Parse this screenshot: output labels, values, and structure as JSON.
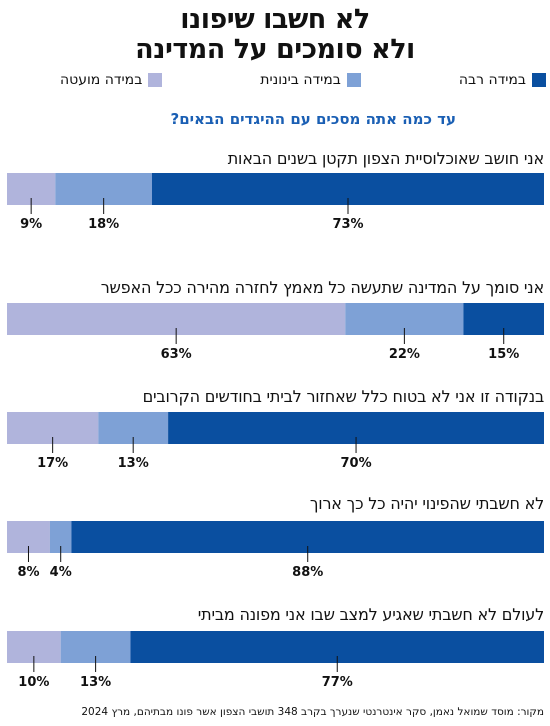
{
  "title": {
    "line1": "לא חשבו שיפונו",
    "line2": "ולא סומכים על המדינה"
  },
  "legend": [
    {
      "label": "במידה רבה",
      "color": "#0a4fa0"
    },
    {
      "label": "במידה בינונית",
      "color": "#7ea1d6"
    },
    {
      "label": "במידה מועטה",
      "color": "#b0b4dc"
    }
  ],
  "question": "עד כמה אתה מסכים עם ההיגדים הבאים?",
  "chart_data": {
    "type": "bar",
    "orientation": "horizontal-stacked",
    "stack_order_left_to_right": [
      "במידה מועטה",
      "במידה בינונית",
      "במידה רבה"
    ],
    "categories": [
      "אני חושב שאוכלוסיית הצפון תקטן בשנים הבאות",
      "אני סומך על המדינה שתעשה כל מאמץ לחזרה מהירה ככל האפשר",
      "בנקודה זו אני לא בטוח כלל שאחזור לביתי בחודשים הקרובים",
      "לא חשבתי שהפינוי יהיה כל כך ארוך",
      "לעולם לא חשבתי שאגיע למצב שבו אני מפונה מביתי"
    ],
    "series": [
      {
        "name": "במידה מועטה",
        "color": "#b0b4dc",
        "values": [
          9,
          63,
          17,
          8,
          10
        ]
      },
      {
        "name": "במידה בינונית",
        "color": "#7ea1d6",
        "values": [
          18,
          22,
          13,
          4,
          13
        ]
      },
      {
        "name": "במידה רבה",
        "color": "#0a4fa0",
        "values": [
          73,
          15,
          70,
          88,
          77
        ]
      }
    ],
    "value_suffix": "%",
    "xlim": [
      0,
      100
    ]
  },
  "source": "מקור: מוסד שמואל נאמן, סקר אינטרנטי שנערך בקרב 348 תושבי הצפון אשר פונו מבתיהם, מרץ 2024"
}
